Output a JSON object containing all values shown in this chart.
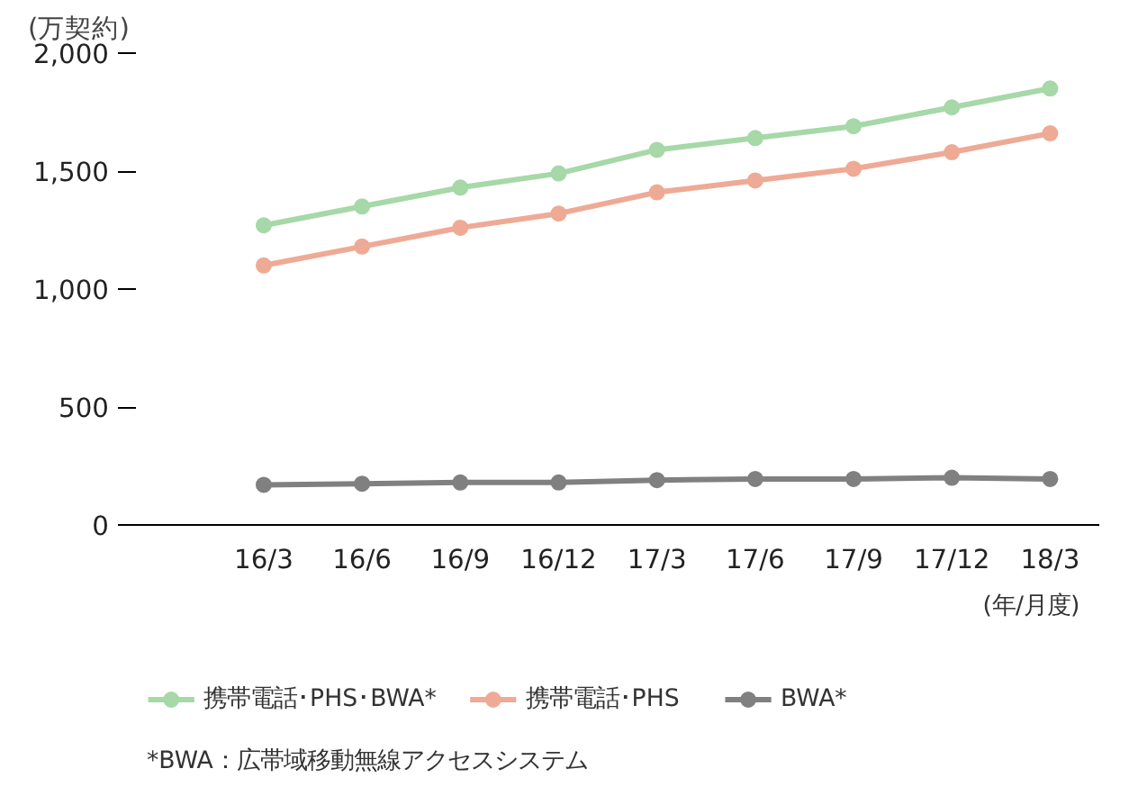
{
  "chart_data": {
    "type": "line",
    "ylabel": "(万契約)",
    "xlabel": "(年/月度)",
    "categories": [
      "16/3",
      "16/6",
      "16/9",
      "16/12",
      "17/3",
      "17/6",
      "17/9",
      "17/12",
      "18/3"
    ],
    "series": [
      {
        "name": "携帯電話･PHS･BWA*",
        "color": "#a6d8a8",
        "values": [
          1270,
          1350,
          1430,
          1490,
          1590,
          1640,
          1690,
          1770,
          1850
        ]
      },
      {
        "name": "携帯電話･PHS",
        "color": "#eeaa95",
        "values": [
          1100,
          1180,
          1260,
          1320,
          1410,
          1460,
          1510,
          1580,
          1660
        ]
      },
      {
        "name": "BWA*",
        "color": "#808080",
        "values": [
          170,
          175,
          180,
          180,
          190,
          195,
          195,
          200,
          195
        ]
      }
    ],
    "ylim": [
      0,
      2000
    ],
    "yticks": [
      0,
      500,
      {
        "value": 1000,
        "label": "1,000"
      },
      {
        "value": 1500,
        "label": "1,500"
      },
      {
        "value": 2000,
        "label": "2,000"
      }
    ],
    "marker": "circle",
    "grid": false,
    "legend": "bottom",
    "annotations": [
      "*BWA：広帯域移動無線アクセスシステム"
    ]
  }
}
